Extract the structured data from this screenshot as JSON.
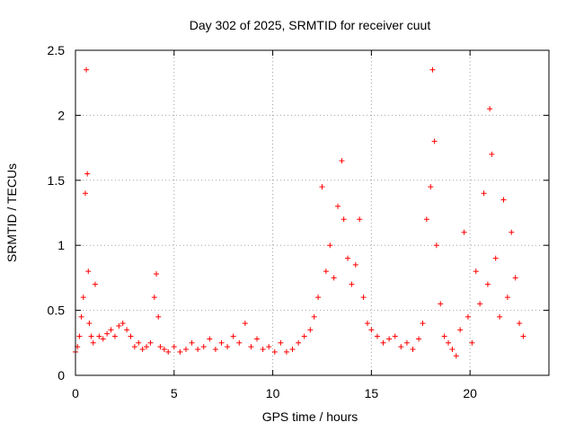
{
  "chart_data": {
    "type": "scatter",
    "title": "Day 302 of 2025, SRMTID for receiver cuut",
    "xlabel": "GPS time / hours",
    "ylabel": "SRMTID / TECUs",
    "xlim": [
      0,
      24
    ],
    "ylim": [
      0,
      2.5
    ],
    "xticks": [
      0,
      5,
      10,
      15,
      20
    ],
    "xtick_labels": [
      "0",
      "5",
      "10",
      "15",
      "20"
    ],
    "yticks": [
      0,
      0.5,
      1,
      1.5,
      2,
      2.5
    ],
    "ytick_labels": [
      "0",
      "0.5",
      "1",
      "1.5",
      "2",
      "2.5"
    ],
    "grid": true,
    "marker": "plus",
    "marker_color": "#ff0000",
    "series": [
      {
        "name": "SRMTID",
        "x": [
          0.0,
          0.1,
          0.2,
          0.3,
          0.4,
          0.5,
          0.55,
          0.6,
          0.65,
          0.7,
          0.8,
          0.9,
          1.0,
          1.2,
          1.4,
          1.6,
          1.8,
          2.0,
          2.2,
          2.4,
          2.6,
          2.8,
          3.0,
          3.2,
          3.4,
          3.6,
          3.8,
          4.0,
          4.1,
          4.2,
          4.3,
          4.5,
          4.7,
          5.0,
          5.3,
          5.6,
          5.9,
          6.2,
          6.5,
          6.8,
          7.1,
          7.4,
          7.7,
          8.0,
          8.3,
          8.6,
          8.9,
          9.2,
          9.5,
          9.8,
          10.1,
          10.4,
          10.7,
          11.0,
          11.3,
          11.6,
          11.9,
          12.1,
          12.3,
          12.5,
          12.7,
          12.9,
          13.1,
          13.3,
          13.5,
          13.6,
          13.8,
          14.0,
          14.2,
          14.4,
          14.6,
          14.8,
          15.0,
          15.3,
          15.6,
          15.9,
          16.2,
          16.5,
          16.8,
          17.1,
          17.4,
          17.6,
          17.8,
          18.0,
          18.1,
          18.2,
          18.3,
          18.5,
          18.7,
          18.9,
          19.1,
          19.3,
          19.5,
          19.7,
          19.9,
          20.1,
          20.3,
          20.5,
          20.7,
          20.9,
          21.0,
          21.1,
          21.3,
          21.5,
          21.7,
          21.9,
          22.1,
          22.3,
          22.5,
          22.7
        ],
        "y": [
          0.18,
          0.22,
          0.3,
          0.45,
          0.6,
          1.4,
          2.35,
          1.55,
          0.8,
          0.4,
          0.3,
          0.25,
          0.7,
          0.3,
          0.28,
          0.32,
          0.35,
          0.3,
          0.38,
          0.4,
          0.35,
          0.3,
          0.22,
          0.25,
          0.2,
          0.22,
          0.25,
          0.6,
          0.78,
          0.45,
          0.22,
          0.2,
          0.18,
          0.22,
          0.18,
          0.2,
          0.25,
          0.2,
          0.22,
          0.28,
          0.2,
          0.25,
          0.22,
          0.3,
          0.25,
          0.4,
          0.22,
          0.28,
          0.2,
          0.22,
          0.18,
          0.25,
          0.18,
          0.2,
          0.25,
          0.3,
          0.35,
          0.45,
          0.6,
          1.45,
          0.8,
          1.0,
          0.75,
          1.3,
          1.65,
          1.2,
          0.9,
          0.7,
          0.85,
          1.2,
          0.6,
          0.4,
          0.35,
          0.3,
          0.25,
          0.28,
          0.3,
          0.22,
          0.25,
          0.2,
          0.28,
          0.4,
          1.2,
          1.45,
          2.35,
          1.8,
          1.0,
          0.55,
          0.3,
          0.25,
          0.2,
          0.15,
          0.35,
          1.1,
          0.45,
          0.25,
          0.8,
          0.55,
          1.4,
          0.7,
          2.05,
          1.7,
          0.9,
          0.45,
          1.35,
          0.6,
          1.1,
          0.75,
          0.4,
          0.3
        ]
      }
    ]
  }
}
